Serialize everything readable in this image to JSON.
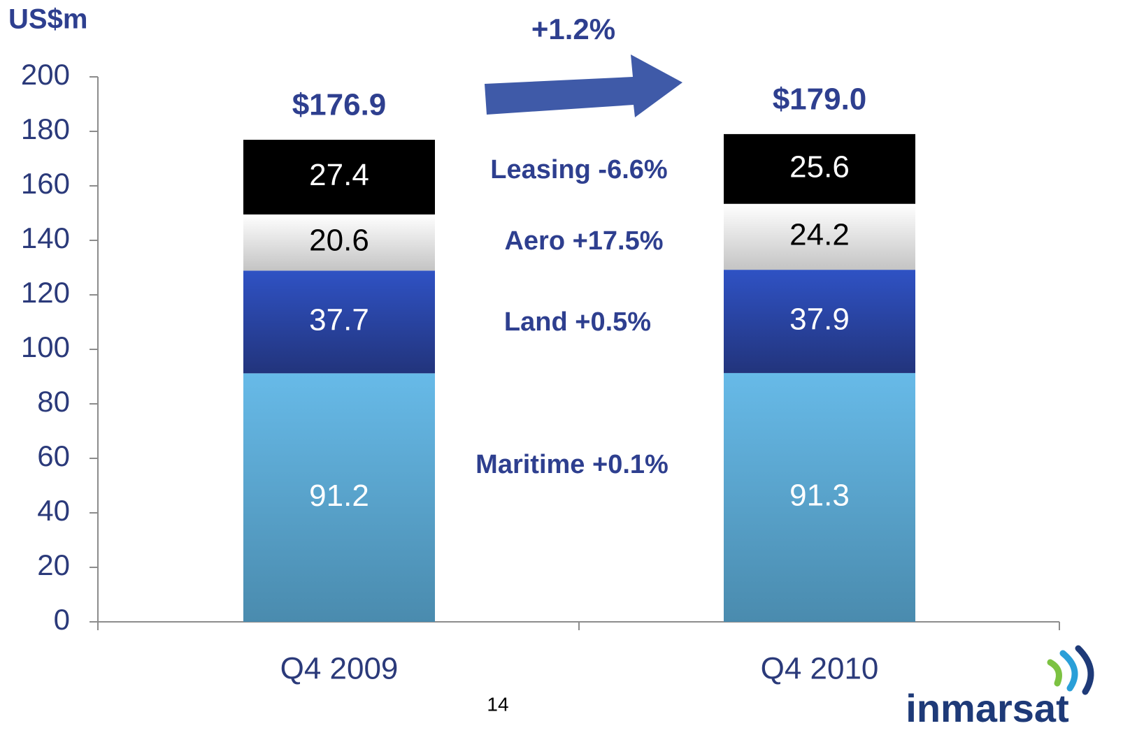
{
  "chart_data": {
    "type": "stacked_bar",
    "y_label": "US$m",
    "growth": "+1.2%",
    "categories": [
      "Q4 2009",
      "Q4 2010"
    ],
    "series": [
      {
        "label": "Maritime +0.1%",
        "color": "#67bae8",
        "color2": "#4a8bae",
        "text_color": "#ffffff",
        "values": [
          91.2,
          91.3
        ]
      },
      {
        "label": "Land +0.5%",
        "color": "#2f52c4",
        "color2": "#22347c",
        "text_color": "#ffffff",
        "values": [
          37.7,
          37.9
        ]
      },
      {
        "label": "Aero +17.5%",
        "color": "#ffffff",
        "color2": "#c4c4c4",
        "text_color": "#000000",
        "values": [
          20.6,
          24.2
        ]
      },
      {
        "label": "Leasing -6.6%",
        "color": "#000000",
        "color2": "#000000",
        "text_color": "#ffffff",
        "values": [
          27.4,
          25.6
        ]
      }
    ],
    "totals": [
      176.9,
      179.0
    ],
    "total_labels": [
      "$176.9",
      "$179.0"
    ],
    "ylim": [
      0,
      200
    ],
    "yticks": [
      0,
      20,
      40,
      60,
      80,
      100,
      120,
      140,
      160,
      180,
      200
    ],
    "page_number": "14",
    "logo": "inmarsat"
  }
}
